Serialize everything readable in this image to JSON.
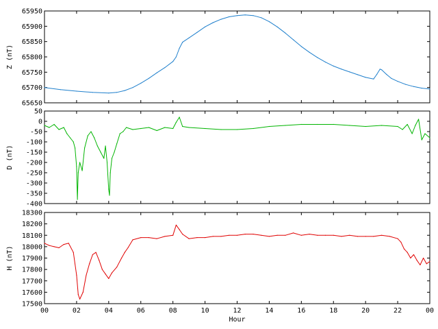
{
  "chart_data": [
    {
      "type": "line",
      "panel": "Z",
      "ylabel": "Z (nT)",
      "ylim": [
        65650,
        65950
      ],
      "yticks": [
        65650,
        65700,
        65750,
        65800,
        65850,
        65900,
        65950
      ],
      "xlim": [
        0,
        24
      ],
      "xticks": [],
      "color": "#1e7fcc",
      "series": [
        {
          "x": [
            0,
            1,
            2,
            3,
            4,
            4.5,
            5,
            5.5,
            6,
            6.5,
            7,
            7.5,
            8,
            8.2,
            8.4,
            8.6,
            9,
            9.5,
            10,
            10.5,
            11,
            11.5,
            12,
            12.5,
            13,
            13.5,
            14,
            14.5,
            15,
            15.5,
            16,
            16.5,
            17,
            17.5,
            18,
            18.5,
            19,
            19.5,
            20,
            20.5,
            20.7,
            20.9,
            21,
            21.3,
            21.6,
            22,
            22.5,
            23,
            23.5,
            24
          ],
          "values": [
            65700,
            65693,
            65688,
            65684,
            65682,
            65684,
            65690,
            65700,
            65714,
            65730,
            65748,
            65765,
            65785,
            65800,
            65828,
            65848,
            65862,
            65880,
            65898,
            65912,
            65923,
            65931,
            65935,
            65937,
            65935,
            65928,
            65915,
            65898,
            65878,
            65856,
            65834,
            65815,
            65798,
            65783,
            65770,
            65760,
            65751,
            65742,
            65733,
            65728,
            65743,
            65760,
            65758,
            65743,
            65730,
            65720,
            65710,
            65703,
            65698,
            65695
          ]
        }
      ]
    },
    {
      "type": "line",
      "panel": "D",
      "ylabel": "D (nT)",
      "ylim": [
        -400,
        50
      ],
      "yticks": [
        -400,
        -350,
        -300,
        -250,
        -200,
        -150,
        -100,
        -50,
        0,
        50
      ],
      "xlim": [
        0,
        24
      ],
      "xticks": [],
      "color": "#00b400",
      "series": [
        {
          "x": [
            0,
            0.3,
            0.6,
            0.9,
            1.2,
            1.4,
            1.6,
            1.8,
            1.9,
            2.0,
            2.05,
            2.1,
            2.2,
            2.35,
            2.5,
            2.7,
            2.9,
            3.1,
            3.3,
            3.5,
            3.7,
            3.8,
            3.9,
            4.0,
            4.05,
            4.1,
            4.2,
            4.35,
            4.5,
            4.7,
            4.9,
            5.1,
            5.5,
            6,
            6.5,
            7,
            7.5,
            8,
            8.2,
            8.4,
            8.6,
            9,
            10,
            11,
            12,
            13,
            14,
            15,
            16,
            17,
            18,
            19,
            20,
            21,
            22,
            22.3,
            22.6,
            22.9,
            23.1,
            23.3,
            23.5,
            23.7,
            24
          ],
          "values": [
            -20,
            -30,
            -15,
            -40,
            -30,
            -60,
            -80,
            -100,
            -130,
            -220,
            -380,
            -250,
            -200,
            -240,
            -130,
            -70,
            -50,
            -80,
            -120,
            -150,
            -180,
            -120,
            -200,
            -330,
            -360,
            -250,
            -180,
            -150,
            -110,
            -60,
            -50,
            -30,
            -40,
            -35,
            -30,
            -45,
            -30,
            -35,
            -5,
            20,
            -25,
            -30,
            -35,
            -40,
            -40,
            -35,
            -25,
            -20,
            -15,
            -15,
            -15,
            -20,
            -25,
            -20,
            -25,
            -40,
            -15,
            -60,
            -20,
            10,
            -90,
            -60,
            -80
          ]
        }
      ]
    },
    {
      "type": "line",
      "panel": "H",
      "ylabel": "H (nT)",
      "xlabel": "Hour",
      "ylim": [
        17500,
        18300
      ],
      "yticks": [
        17500,
        17600,
        17700,
        17800,
        17900,
        18000,
        18100,
        18200,
        18300
      ],
      "xlim": [
        0,
        24
      ],
      "xticks": [
        "00",
        "02",
        "04",
        "06",
        "08",
        "10",
        "12",
        "14",
        "16",
        "18",
        "20",
        "22",
        "00"
      ],
      "color": "#e00000",
      "series": [
        {
          "x": [
            0,
            0.3,
            0.6,
            0.9,
            1.2,
            1.5,
            1.8,
            2.0,
            2.1,
            2.2,
            2.4,
            2.6,
            2.8,
            3.0,
            3.2,
            3.4,
            3.6,
            3.8,
            4.0,
            4.2,
            4.5,
            4.8,
            5.0,
            5.2,
            5.5,
            6,
            6.5,
            7,
            7.5,
            8,
            8.2,
            8.4,
            8.6,
            9,
            9.5,
            10,
            10.5,
            11,
            11.5,
            12,
            12.5,
            13,
            13.5,
            14,
            14.5,
            15,
            15.5,
            16,
            16.5,
            17,
            17.5,
            18,
            18.5,
            19,
            19.5,
            20,
            20.5,
            21,
            21.5,
            22,
            22.2,
            22.4,
            22.6,
            22.8,
            23,
            23.2,
            23.4,
            23.6,
            23.8,
            24
          ],
          "values": [
            18030,
            18010,
            18000,
            17990,
            18020,
            18030,
            17950,
            17750,
            17580,
            17540,
            17600,
            17750,
            17850,
            17930,
            17950,
            17880,
            17800,
            17760,
            17720,
            17770,
            17820,
            17900,
            17950,
            17990,
            18060,
            18080,
            18080,
            18070,
            18090,
            18100,
            18190,
            18150,
            18110,
            18070,
            18080,
            18080,
            18090,
            18090,
            18100,
            18100,
            18110,
            18110,
            18100,
            18090,
            18100,
            18100,
            18120,
            18100,
            18110,
            18100,
            18100,
            18100,
            18090,
            18100,
            18090,
            18090,
            18090,
            18100,
            18090,
            18070,
            18040,
            17980,
            17950,
            17900,
            17930,
            17880,
            17840,
            17900,
            17850,
            17870
          ]
        }
      ]
    }
  ]
}
